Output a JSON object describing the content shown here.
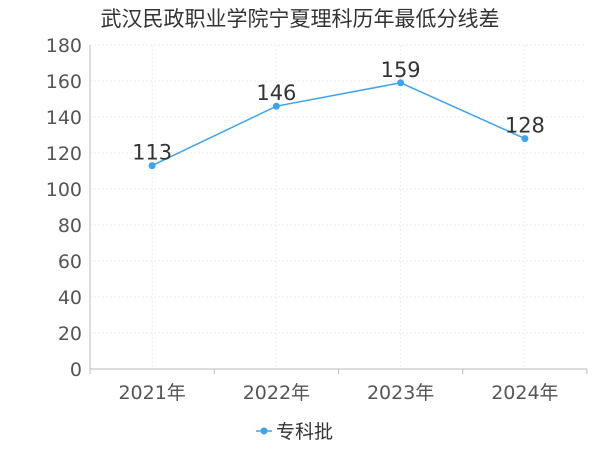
{
  "chart_data": {
    "type": "line",
    "title": "武汉民政职业学院宁夏理科历年最低分线差",
    "categories": [
      "2021年",
      "2022年",
      "2023年",
      "2024年"
    ],
    "series": [
      {
        "name": "专科批",
        "values": [
          113,
          146,
          159,
          128
        ]
      }
    ],
    "ylim": [
      0,
      180
    ],
    "yticks": [
      0,
      20,
      40,
      60,
      80,
      100,
      120,
      140,
      160,
      180
    ],
    "grid": true,
    "legend": "bottom-center",
    "colors": {
      "series": "#3fa2ef",
      "axis": "#bbbbbb",
      "grid": "#eeeeee"
    }
  }
}
